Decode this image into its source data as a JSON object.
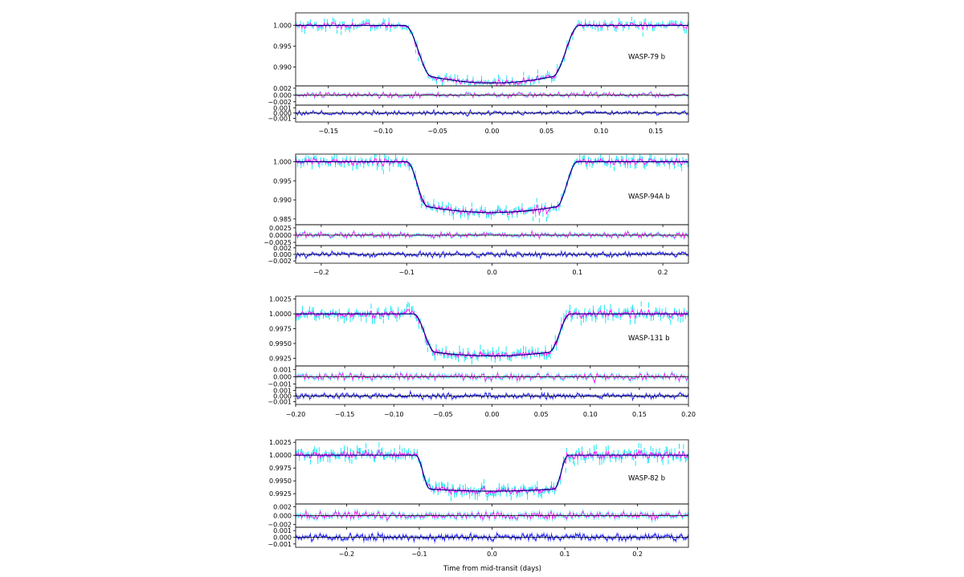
{
  "figure": {
    "xlabel": "Time from mid-transit (days)",
    "colors": {
      "raw": "#00e5ee",
      "binned": "#ff00ff",
      "model": "#000080",
      "residual2": "#0000ff",
      "zeroline": "#000000"
    }
  },
  "chart_data": [
    {
      "type": "scatter",
      "label": "WASP-79 b",
      "xlim": [
        -0.18,
        0.18
      ],
      "xticks": [
        -0.15,
        -0.1,
        -0.05,
        0.0,
        0.05,
        0.1,
        0.15
      ],
      "xtick_labels": [
        "−0.15",
        "−0.10",
        "−0.05",
        "0.00",
        "0.05",
        "0.10",
        "0.15"
      ],
      "flux": {
        "ylim": [
          0.9855,
          1.003
        ],
        "yticks": [
          0.99,
          0.995,
          1.0
        ],
        "ytick_labels": [
          "0.990",
          "0.995",
          "1.000"
        ]
      },
      "residuals": {
        "ylim": [
          -0.003,
          0.0027
        ],
        "yticks": [
          -0.002,
          0.0,
          0.002
        ],
        "ytick_labels": [
          "−0.002",
          "0.000",
          "0.002"
        ]
      },
      "residuals2": {
        "ylim": [
          -0.0017,
          0.0015
        ],
        "yticks": [
          -0.001,
          0.0,
          0.001
        ],
        "ytick_labels": [
          "−0.001",
          "0.000",
          "0.001"
        ]
      },
      "model": {
        "depth": 0.0123,
        "t14": 0.16,
        "t23": 0.11,
        "curvature": 0.0015
      },
      "noise": {
        "flux": 0.0009,
        "residuals": 0.0007,
        "residuals2": 0.00035,
        "points": 280
      }
    },
    {
      "type": "scatter",
      "label": "WASP-94A b",
      "xlim": [
        -0.23,
        0.23
      ],
      "xticks": [
        -0.2,
        -0.1,
        0.0,
        0.1,
        0.2
      ],
      "xtick_labels": [
        "−0.2",
        "−0.1",
        "0.0",
        "0.1",
        "0.2"
      ],
      "flux": {
        "ylim": [
          0.9835,
          1.002
        ],
        "yticks": [
          0.985,
          0.99,
          0.995,
          1.0
        ],
        "ytick_labels": [
          "0.985",
          "0.990",
          "0.995",
          "1.000"
        ]
      },
      "residuals": {
        "ylim": [
          -0.0036,
          0.0036
        ],
        "yticks": [
          -0.0025,
          0.0,
          0.0025
        ],
        "ytick_labels": [
          "−0.0025",
          "0.0000",
          "0.0025"
        ]
      },
      "residuals2": {
        "ylim": [
          -0.0027,
          0.0027
        ],
        "yticks": [
          -0.002,
          0.0,
          0.002
        ],
        "ytick_labels": [
          "−0.002",
          "0.000",
          "0.002"
        ]
      },
      "model": {
        "depth": 0.0118,
        "t14": 0.2,
        "t23": 0.15,
        "curvature": 0.0015
      },
      "noise": {
        "flux": 0.0011,
        "residuals": 0.0009,
        "residuals2": 0.0007,
        "points": 320
      }
    },
    {
      "type": "scatter",
      "label": "WASP-131 b",
      "xlim": [
        -0.2,
        0.2
      ],
      "xticks": [
        -0.2,
        -0.15,
        -0.1,
        -0.05,
        0.0,
        0.05,
        0.1,
        0.15,
        0.2
      ],
      "xtick_labels": [
        "−0.20",
        "−0.15",
        "−0.10",
        "−0.05",
        "0.00",
        "0.05",
        "0.10",
        "0.15",
        "0.20"
      ],
      "flux": {
        "ylim": [
          0.9912,
          1.003
        ],
        "yticks": [
          0.9925,
          0.995,
          0.9975,
          1.0,
          1.0025
        ],
        "ytick_labels": [
          "0.9925",
          "0.9950",
          "0.9975",
          "1.0000",
          "1.0025"
        ]
      },
      "residuals": {
        "ylim": [
          -0.0015,
          0.0015
        ],
        "yticks": [
          -0.001,
          0.0,
          0.001
        ],
        "ytick_labels": [
          "−0.001",
          "0.000",
          "0.001"
        ]
      },
      "residuals2": {
        "ylim": [
          -0.0015,
          0.0015
        ],
        "yticks": [
          -0.001,
          0.0,
          0.001
        ],
        "ytick_labels": [
          "−0.001",
          "0.000",
          "0.001"
        ]
      },
      "model": {
        "depth": 0.0065,
        "t14": 0.16,
        "t23": 0.115,
        "curvature": 0.0006
      },
      "noise": {
        "flux": 0.0008,
        "residuals": 0.00045,
        "residuals2": 0.00045,
        "points": 320
      }
    },
    {
      "type": "scatter",
      "label": "WASP-82 b",
      "xlim": [
        -0.27,
        0.27
      ],
      "xticks": [
        -0.2,
        -0.1,
        0.0,
        0.1,
        0.2
      ],
      "xtick_labels": [
        "−0.2",
        "−0.1",
        "0.0",
        "0.1",
        "0.2"
      ],
      "flux": {
        "ylim": [
          0.9905,
          1.003
        ],
        "yticks": [
          0.9925,
          0.995,
          0.9975,
          1.0,
          1.0025
        ],
        "ytick_labels": [
          "0.9925",
          "0.9950",
          "0.9975",
          "1.0000",
          "1.0025"
        ]
      },
      "residuals": {
        "ylim": [
          -0.0026,
          0.0026
        ],
        "yticks": [
          -0.002,
          0.0,
          0.002
        ],
        "ytick_labels": [
          "−0.002",
          "0.000",
          "0.002"
        ]
      },
      "residuals2": {
        "ylim": [
          -0.0015,
          0.0015
        ],
        "yticks": [
          -0.001,
          0.0,
          0.001
        ],
        "ytick_labels": [
          "−0.001",
          "0.000",
          "0.001"
        ]
      },
      "model": {
        "depth": 0.0066,
        "t14": 0.21,
        "t23": 0.17,
        "curvature": 0.0004
      },
      "noise": {
        "flux": 0.0009,
        "residuals": 0.0008,
        "residuals2": 0.00045,
        "points": 360
      }
    }
  ]
}
